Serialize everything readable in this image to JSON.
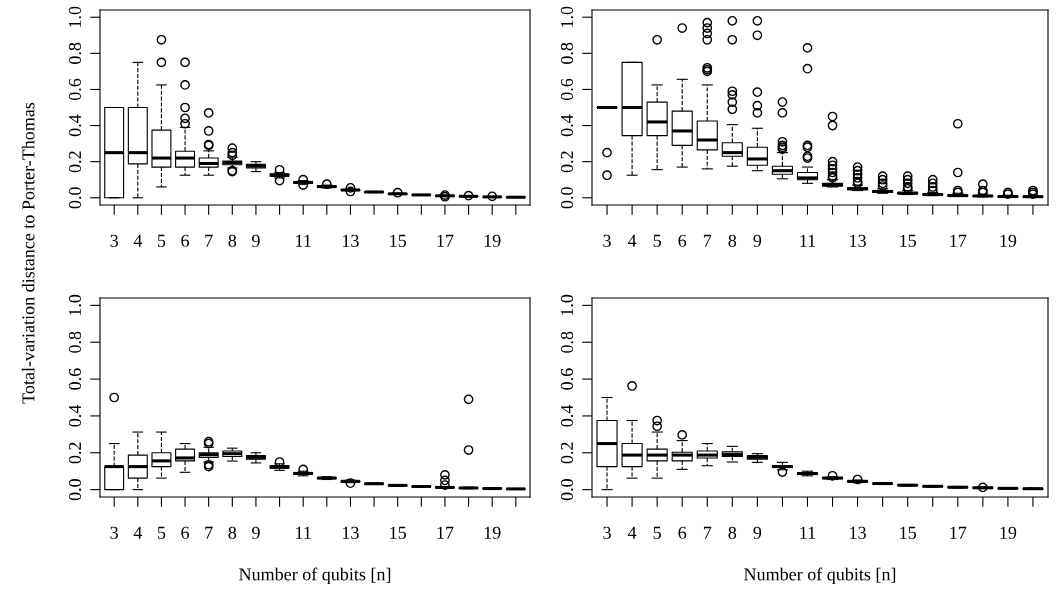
{
  "chart_data": [
    {
      "type": "box",
      "ylabel": "Total-variation distance to Porter-Thomas",
      "categories": [
        "3",
        "4",
        "5",
        "6",
        "7",
        "8",
        "9",
        null,
        "11",
        null,
        "13",
        null,
        "15",
        null,
        "17",
        null,
        "19",
        null
      ],
      "ylim": [
        -0.04,
        1.04
      ],
      "yticks": [
        {
          "value": 0,
          "label": "0.0"
        },
        {
          "value": 0.2,
          "label": "0.2"
        },
        {
          "value": 0.4,
          "label": "0.4"
        },
        {
          "value": 0.6,
          "label": "0.6"
        },
        {
          "value": 0.8,
          "label": "0.8"
        },
        {
          "value": 1,
          "label": "1.0"
        }
      ],
      "marker": "circle",
      "line_style": "dashed",
      "color": "#000000",
      "boxes": [
        {
          "low": 0,
          "q1": 0,
          "median": 0.25,
          "q3": 0.5,
          "high": 0.5
        },
        {
          "low": 0,
          "q1": 0.1875,
          "median": 0.25,
          "q3": 0.5,
          "high": 0.75
        },
        {
          "low": 0.06,
          "q1": 0.17,
          "median": 0.22,
          "q3": 0.375,
          "high": 0.625,
          "outliers": [
            0.875,
            0.75
          ]
        },
        {
          "low": 0.125,
          "q1": 0.17,
          "median": 0.22,
          "q3": 0.258,
          "high": 0.39,
          "outliers": [
            0.75,
            0.625,
            0.5,
            0.44,
            0.41
          ]
        },
        {
          "low": 0.125,
          "q1": 0.17,
          "median": 0.19,
          "q3": 0.22,
          "high": 0.26,
          "outliers": [
            0.47,
            0.37,
            0.295,
            0.29
          ]
        },
        {
          "low": 0.165,
          "q1": 0.183,
          "median": 0.195,
          "q3": 0.203,
          "high": 0.225,
          "outliers": [
            0.275,
            0.25,
            0.235,
            0.15,
            0.145
          ]
        },
        {
          "low": 0.145,
          "q1": 0.165,
          "median": 0.175,
          "q3": 0.185,
          "high": 0.2
        },
        {
          "low": 0.11,
          "q1": 0.12,
          "median": 0.125,
          "q3": 0.133,
          "high": 0.14,
          "outliers": [
            0.155,
            0.095
          ]
        },
        {
          "low": 0.075,
          "q1": 0.08,
          "median": 0.085,
          "q3": 0.09,
          "high": 0.095,
          "outliers": [
            0.1,
            0.07
          ]
        },
        {
          "low": 0.055,
          "q1": 0.058,
          "median": 0.062,
          "q3": 0.066,
          "high": 0.07,
          "outliers": [
            0.075
          ]
        },
        {
          "low": 0.038,
          "q1": 0.04,
          "median": 0.043,
          "q3": 0.046,
          "high": 0.05,
          "outliers": [
            0.055,
            0.035
          ]
        },
        {
          "low": 0.029,
          "q1": 0.03,
          "median": 0.032,
          "q3": 0.034,
          "high": 0.035
        },
        {
          "low": 0.018,
          "q1": 0.02,
          "median": 0.022,
          "q3": 0.024,
          "high": 0.026,
          "outliers": [
            0.028
          ]
        },
        {
          "low": 0.014,
          "q1": 0.015,
          "median": 0.016,
          "q3": 0.017,
          "high": 0.018
        },
        {
          "low": 0.008,
          "q1": 0.009,
          "median": 0.011,
          "q3": 0.013,
          "high": 0.014,
          "outliers": [
            0.015,
            0.006
          ]
        },
        {
          "low": 0.006,
          "q1": 0.007,
          "median": 0.008,
          "q3": 0.009,
          "high": 0.01,
          "outliers": [
            0.012
          ]
        },
        {
          "low": 0.003,
          "q1": 0.004,
          "median": 0.005,
          "q3": 0.006,
          "high": 0.007,
          "outliers": [
            0.008
          ]
        },
        {
          "low": 0.001,
          "q1": 0.002,
          "median": 0.003,
          "q3": 0.004,
          "high": 0.005
        }
      ]
    },
    {
      "type": "box",
      "categories": [
        "3",
        "4",
        "5",
        "6",
        "7",
        "8",
        "9",
        null,
        "11",
        null,
        "13",
        null,
        "15",
        null,
        "17",
        null,
        "19",
        null
      ],
      "ylim": [
        -0.04,
        1.04
      ],
      "yticks": [
        {
          "value": 0,
          "label": "0.0"
        },
        {
          "value": 0.2,
          "label": "0.2"
        },
        {
          "value": 0.4,
          "label": "0.4"
        },
        {
          "value": 0.6,
          "label": "0.6"
        },
        {
          "value": 0.8,
          "label": "0.8"
        },
        {
          "value": 1,
          "label": "1.0"
        }
      ],
      "marker": "circle",
      "line_style": "dashed",
      "color": "#000000",
      "boxes": [
        {
          "low": 0.5,
          "q1": 0.5,
          "median": 0.5,
          "q3": 0.5,
          "high": 0.5,
          "outliers": [
            0.25,
            0.125
          ]
        },
        {
          "low": 0.125,
          "q1": 0.344,
          "median": 0.5,
          "q3": 0.75,
          "high": 0.75
        },
        {
          "low": 0.156,
          "q1": 0.344,
          "median": 0.42,
          "q3": 0.53,
          "high": 0.625,
          "outliers": [
            0.875
          ]
        },
        {
          "low": 0.17,
          "q1": 0.29,
          "median": 0.37,
          "q3": 0.48,
          "high": 0.656,
          "outliers": [
            0.94
          ]
        },
        {
          "low": 0.16,
          "q1": 0.265,
          "median": 0.32,
          "q3": 0.425,
          "high": 0.625,
          "outliers": [
            0.97,
            0.94,
            0.91,
            0.875,
            0.72,
            0.71,
            0.7
          ]
        },
        {
          "low": 0.175,
          "q1": 0.23,
          "median": 0.25,
          "q3": 0.305,
          "high": 0.405,
          "outliers": [
            0.98,
            0.875,
            0.59,
            0.57,
            0.53,
            0.49
          ]
        },
        {
          "low": 0.15,
          "q1": 0.18,
          "median": 0.215,
          "q3": 0.28,
          "high": 0.385,
          "outliers": [
            0.98,
            0.9,
            0.585,
            0.51,
            0.47
          ]
        },
        {
          "low": 0.105,
          "q1": 0.13,
          "median": 0.15,
          "q3": 0.175,
          "high": 0.25,
          "outliers": [
            0.53,
            0.47,
            0.31,
            0.29,
            0.28,
            0.27
          ]
        },
        {
          "low": 0.08,
          "q1": 0.1,
          "median": 0.11,
          "q3": 0.14,
          "high": 0.17,
          "outliers": [
            0.83,
            0.715,
            0.29,
            0.28,
            0.23,
            0.22
          ]
        },
        {
          "low": 0.06,
          "q1": 0.065,
          "median": 0.07,
          "q3": 0.08,
          "high": 0.1,
          "outliers": [
            0.45,
            0.4,
            0.2,
            0.18,
            0.16,
            0.14,
            0.12,
            0.11
          ]
        },
        {
          "low": 0.04,
          "q1": 0.045,
          "median": 0.05,
          "q3": 0.055,
          "high": 0.07,
          "outliers": [
            0.17,
            0.15,
            0.13,
            0.11,
            0.09,
            0.08
          ]
        },
        {
          "low": 0.025,
          "q1": 0.03,
          "median": 0.035,
          "q3": 0.04,
          "high": 0.05,
          "outliers": [
            0.12,
            0.1,
            0.08,
            0.065
          ]
        },
        {
          "low": 0.018,
          "q1": 0.022,
          "median": 0.025,
          "q3": 0.03,
          "high": 0.04,
          "outliers": [
            0.12,
            0.1,
            0.08,
            0.06,
            0.05
          ]
        },
        {
          "low": 0.012,
          "q1": 0.015,
          "median": 0.018,
          "q3": 0.022,
          "high": 0.03,
          "outliers": [
            0.1,
            0.08,
            0.06,
            0.04
          ]
        },
        {
          "low": 0.008,
          "q1": 0.01,
          "median": 0.012,
          "q3": 0.016,
          "high": 0.025,
          "outliers": [
            0.41,
            0.14,
            0.04,
            0.03
          ]
        },
        {
          "low": 0.005,
          "q1": 0.007,
          "median": 0.01,
          "q3": 0.013,
          "high": 0.02,
          "outliers": [
            0.075,
            0.04,
            0.03
          ]
        },
        {
          "low": 0.003,
          "q1": 0.005,
          "median": 0.007,
          "q3": 0.009,
          "high": 0.014,
          "outliers": [
            0.03,
            0.02
          ]
        },
        {
          "low": 0.002,
          "q1": 0.004,
          "median": 0.006,
          "q3": 0.008,
          "high": 0.012,
          "outliers": [
            0.04,
            0.03,
            0.02
          ]
        }
      ]
    },
    {
      "type": "box",
      "xlabel": "Number of qubits [n]",
      "categories": [
        "3",
        "4",
        "5",
        "6",
        "7",
        "8",
        "9",
        null,
        "11",
        null,
        "13",
        null,
        "15",
        null,
        "17",
        null,
        "19",
        null
      ],
      "ylim": [
        -0.04,
        1.04
      ],
      "yticks": [
        {
          "value": 0,
          "label": "0.0"
        },
        {
          "value": 0.2,
          "label": "0.2"
        },
        {
          "value": 0.4,
          "label": "0.4"
        },
        {
          "value": 0.6,
          "label": "0.6"
        },
        {
          "value": 0.8,
          "label": "0.8"
        },
        {
          "value": 1,
          "label": "1.0"
        }
      ],
      "marker": "circle",
      "line_style": "dashed",
      "color": "#000000",
      "boxes": [
        {
          "low": 0,
          "q1": 0,
          "median": 0.125,
          "q3": 0.125,
          "high": 0.25,
          "outliers": [
            0.5
          ]
        },
        {
          "low": 0,
          "q1": 0.0625,
          "median": 0.125,
          "q3": 0.1875,
          "high": 0.3125
        },
        {
          "low": 0.0625,
          "q1": 0.125,
          "median": 0.156,
          "q3": 0.2,
          "high": 0.3125
        },
        {
          "low": 0.094,
          "q1": 0.156,
          "median": 0.172,
          "q3": 0.22,
          "high": 0.25
        },
        {
          "low": 0.15,
          "q1": 0.175,
          "median": 0.19,
          "q3": 0.2,
          "high": 0.23,
          "outliers": [
            0.26,
            0.25,
            0.135,
            0.125
          ]
        },
        {
          "low": 0.155,
          "q1": 0.18,
          "median": 0.195,
          "q3": 0.21,
          "high": 0.225
        },
        {
          "low": 0.145,
          "q1": 0.165,
          "median": 0.175,
          "q3": 0.185,
          "high": 0.2
        },
        {
          "low": 0.105,
          "q1": 0.117,
          "median": 0.123,
          "q3": 0.13,
          "high": 0.14,
          "outliers": [
            0.15
          ]
        },
        {
          "low": 0.075,
          "q1": 0.083,
          "median": 0.088,
          "q3": 0.093,
          "high": 0.1,
          "outliers": [
            0.11
          ]
        },
        {
          "low": 0.055,
          "q1": 0.06,
          "median": 0.063,
          "q3": 0.066,
          "high": 0.07
        },
        {
          "low": 0.038,
          "q1": 0.042,
          "median": 0.045,
          "q3": 0.048,
          "high": 0.052,
          "outliers": [
            0.035
          ]
        },
        {
          "low": 0.028,
          "q1": 0.03,
          "median": 0.032,
          "q3": 0.034,
          "high": 0.036
        },
        {
          "low": 0.019,
          "q1": 0.021,
          "median": 0.023,
          "q3": 0.025,
          "high": 0.027
        },
        {
          "low": 0.013,
          "q1": 0.015,
          "median": 0.017,
          "q3": 0.019,
          "high": 0.021
        },
        {
          "low": 0.008,
          "q1": 0.01,
          "median": 0.012,
          "q3": 0.014,
          "high": 0.016,
          "outliers": [
            0.08,
            0.05,
            0.025
          ]
        },
        {
          "low": 0.005,
          "q1": 0.007,
          "median": 0.009,
          "q3": 0.011,
          "high": 0.013,
          "outliers": [
            0.49,
            0.215
          ]
        },
        {
          "low": 0.003,
          "q1": 0.005,
          "median": 0.006,
          "q3": 0.008,
          "high": 0.01
        },
        {
          "low": 0.002,
          "q1": 0.003,
          "median": 0.004,
          "q3": 0.005,
          "high": 0.006
        }
      ]
    },
    {
      "type": "box",
      "xlabel": "Number of qubits [n]",
      "categories": [
        "3",
        "4",
        "5",
        "6",
        "7",
        "8",
        "9",
        null,
        "11",
        null,
        "13",
        null,
        "15",
        null,
        "17",
        null,
        "19",
        null
      ],
      "ylim": [
        -0.04,
        1.04
      ],
      "yticks": [
        {
          "value": 0,
          "label": "0.0"
        },
        {
          "value": 0.2,
          "label": "0.2"
        },
        {
          "value": 0.4,
          "label": "0.4"
        },
        {
          "value": 0.6,
          "label": "0.6"
        },
        {
          "value": 0.8,
          "label": "0.8"
        },
        {
          "value": 1,
          "label": "1.0"
        }
      ],
      "marker": "circle",
      "line_style": "dashed",
      "color": "#000000",
      "boxes": [
        {
          "low": 0,
          "q1": 0.125,
          "median": 0.25,
          "q3": 0.375,
          "high": 0.5
        },
        {
          "low": 0.0625,
          "q1": 0.125,
          "median": 0.1875,
          "q3": 0.25,
          "high": 0.375,
          "outliers": [
            0.5625
          ]
        },
        {
          "low": 0.0625,
          "q1": 0.156,
          "median": 0.1875,
          "q3": 0.22,
          "high": 0.3125,
          "outliers": [
            0.375,
            0.344
          ]
        },
        {
          "low": 0.11,
          "q1": 0.156,
          "median": 0.1875,
          "q3": 0.203,
          "high": 0.266,
          "outliers": [
            0.297
          ]
        },
        {
          "low": 0.13,
          "q1": 0.172,
          "median": 0.1875,
          "q3": 0.21,
          "high": 0.25
        },
        {
          "low": 0.15,
          "q1": 0.18,
          "median": 0.19,
          "q3": 0.205,
          "high": 0.235
        },
        {
          "low": 0.148,
          "q1": 0.165,
          "median": 0.175,
          "q3": 0.185,
          "high": 0.195
        },
        {
          "low": 0.108,
          "q1": 0.12,
          "median": 0.125,
          "q3": 0.13,
          "high": 0.148,
          "outliers": [
            0.095
          ]
        },
        {
          "low": 0.075,
          "q1": 0.083,
          "median": 0.087,
          "q3": 0.092,
          "high": 0.1
        },
        {
          "low": 0.055,
          "q1": 0.06,
          "median": 0.063,
          "q3": 0.066,
          "high": 0.07,
          "outliers": [
            0.075
          ]
        },
        {
          "low": 0.038,
          "q1": 0.042,
          "median": 0.045,
          "q3": 0.048,
          "high": 0.052,
          "outliers": [
            0.055
          ]
        },
        {
          "low": 0.029,
          "q1": 0.031,
          "median": 0.033,
          "q3": 0.035,
          "high": 0.037
        },
        {
          "low": 0.02,
          "q1": 0.022,
          "median": 0.024,
          "q3": 0.026,
          "high": 0.028
        },
        {
          "low": 0.014,
          "q1": 0.016,
          "median": 0.018,
          "q3": 0.02,
          "high": 0.022
        },
        {
          "low": 0.009,
          "q1": 0.011,
          "median": 0.013,
          "q3": 0.015,
          "high": 0.017
        },
        {
          "low": 0.006,
          "q1": 0.008,
          "median": 0.01,
          "q3": 0.012,
          "high": 0.014,
          "outliers": [
            0.012
          ]
        },
        {
          "low": 0.003,
          "q1": 0.005,
          "median": 0.007,
          "q3": 0.009,
          "high": 0.011
        },
        {
          "low": 0.001,
          "q1": 0.003,
          "median": 0.005,
          "q3": 0.007,
          "high": 0.009
        }
      ]
    }
  ]
}
